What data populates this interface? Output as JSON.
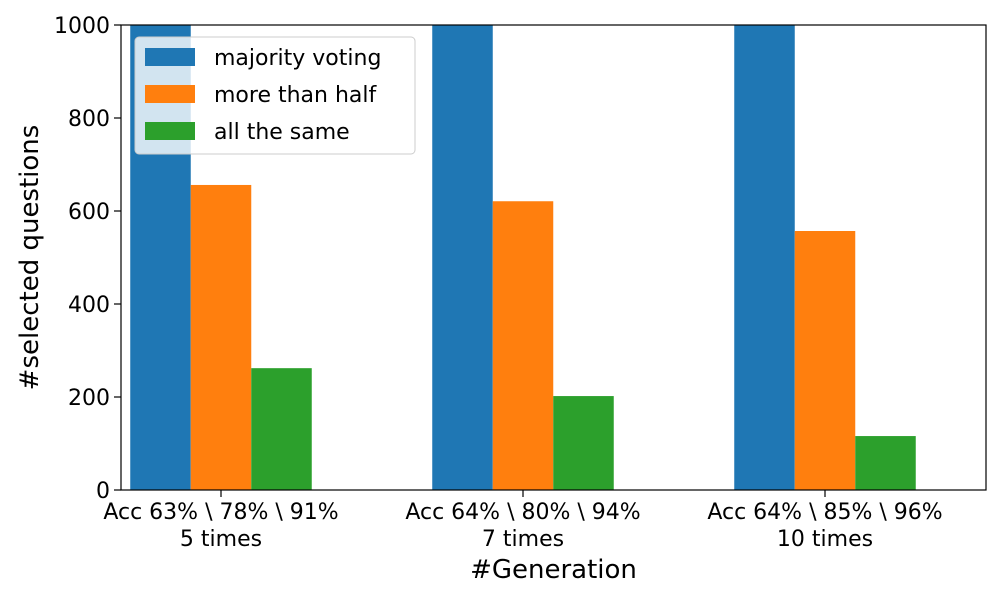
{
  "chart_data": {
    "type": "bar",
    "title": "",
    "xlabel": "#Generation",
    "ylabel": "#selected questions",
    "ylim": [
      0,
      1000
    ],
    "yticks": [
      0,
      200,
      400,
      600,
      800,
      1000
    ],
    "categories": [
      [
        "Acc 63% \\ 78% \\ 91%",
        "5 times"
      ],
      [
        "Acc 64% \\ 80% \\ 94%",
        "7 times"
      ],
      [
        "Acc 64% \\ 85% \\ 96%",
        "10 times"
      ]
    ],
    "series": [
      {
        "name": "majority voting",
        "color": "#1f77b4",
        "values": [
          1000,
          1000,
          1000
        ]
      },
      {
        "name": "more than half",
        "color": "#ff7f0e",
        "values": [
          656,
          621,
          557
        ]
      },
      {
        "name": "all the same",
        "color": "#2ca02c",
        "values": [
          262,
          202,
          116
        ]
      }
    ],
    "legend": "top-left",
    "grid": false
  }
}
